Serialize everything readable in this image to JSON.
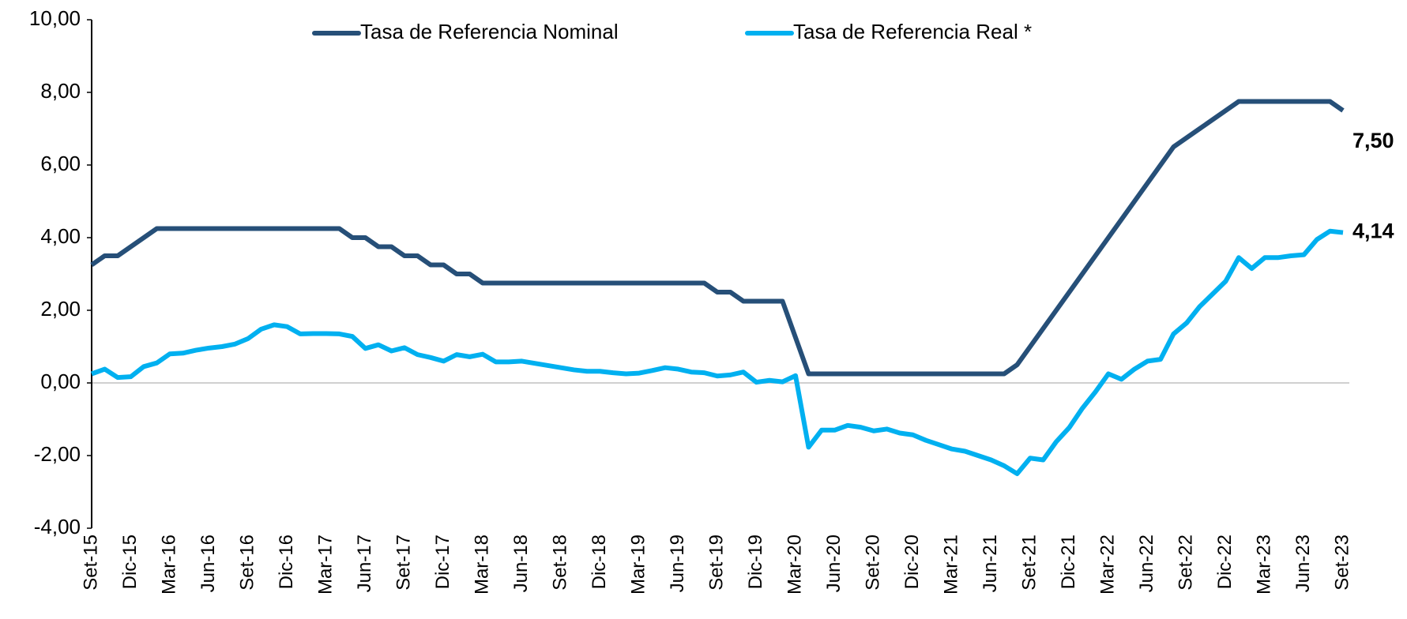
{
  "chart_data": {
    "type": "line",
    "categories": [
      "Set-15",
      null,
      null,
      "Dic-15",
      null,
      null,
      "Mar-16",
      null,
      null,
      "Jun-16",
      null,
      null,
      "Set-16",
      null,
      null,
      "Dic-16",
      null,
      null,
      "Mar-17",
      null,
      null,
      "Jun-17",
      null,
      null,
      "Set-17",
      null,
      null,
      "Dic-17",
      null,
      null,
      "Mar-18",
      null,
      null,
      "Jun-18",
      null,
      null,
      "Set-18",
      null,
      null,
      "Dic-18",
      null,
      null,
      "Mar-19",
      null,
      null,
      "Jun-19",
      null,
      null,
      "Set-19",
      null,
      null,
      "Dic-19",
      null,
      null,
      "Mar-20",
      null,
      null,
      "Jun-20",
      null,
      null,
      "Set-20",
      null,
      null,
      "Dic-20",
      null,
      null,
      "Mar-21",
      null,
      null,
      "Jun-21",
      null,
      null,
      "Set-21",
      null,
      null,
      "Dic-21",
      null,
      null,
      "Mar-22",
      null,
      null,
      "Jun-22",
      null,
      null,
      "Set-22",
      null,
      null,
      "Dic-22",
      null,
      null,
      "Mar-23",
      null,
      null,
      "Jun-23",
      null,
      null,
      "Set-23"
    ],
    "series": [
      {
        "name": "Tasa de Referencia Nominal",
        "color": "#264f78",
        "values": [
          3.25,
          3.5,
          3.5,
          3.75,
          4.0,
          4.25,
          4.25,
          4.25,
          4.25,
          4.25,
          4.25,
          4.25,
          4.25,
          4.25,
          4.25,
          4.25,
          4.25,
          4.25,
          4.25,
          4.25,
          4.0,
          4.0,
          3.75,
          3.75,
          3.5,
          3.5,
          3.25,
          3.25,
          3.0,
          3.0,
          2.75,
          2.75,
          2.75,
          2.75,
          2.75,
          2.75,
          2.75,
          2.75,
          2.75,
          2.75,
          2.75,
          2.75,
          2.75,
          2.75,
          2.75,
          2.75,
          2.75,
          2.75,
          2.5,
          2.5,
          2.25,
          2.25,
          2.25,
          2.25,
          1.25,
          0.25,
          0.25,
          0.25,
          0.25,
          0.25,
          0.25,
          0.25,
          0.25,
          0.25,
          0.25,
          0.25,
          0.25,
          0.25,
          0.25,
          0.25,
          0.25,
          0.5,
          1.0,
          1.5,
          2.0,
          2.5,
          3.0,
          3.5,
          4.0,
          4.5,
          5.0,
          5.5,
          6.0,
          6.5,
          6.75,
          7.0,
          7.25,
          7.5,
          7.75,
          7.75,
          7.75,
          7.75,
          7.75,
          7.75,
          7.75,
          7.75,
          7.5
        ],
        "value_labels": [
          null,
          null,
          null,
          null,
          null,
          null,
          null,
          null,
          null,
          null,
          null,
          null,
          null,
          null,
          null,
          null,
          null,
          null,
          null,
          null,
          null,
          null,
          null,
          null,
          null,
          null,
          null,
          null,
          null,
          null,
          null,
          null,
          null,
          null,
          null,
          null,
          null,
          null,
          null,
          null,
          null,
          null,
          null,
          null,
          null,
          null,
          null,
          null,
          null,
          null,
          null,
          null,
          null,
          null,
          null,
          null,
          null,
          null,
          null,
          null,
          null,
          null,
          null,
          null,
          null,
          null,
          null,
          null,
          null,
          null,
          null,
          null,
          null,
          null,
          null,
          null,
          null,
          null,
          null,
          null,
          null,
          null,
          null,
          null,
          null,
          null,
          null,
          null,
          null,
          null,
          null,
          null,
          null,
          null,
          null,
          null,
          "7,50"
        ]
      },
      {
        "name": "Tasa de Referencia Real *",
        "color": "#00b0f0",
        "values": [
          0.25,
          0.38,
          0.15,
          0.17,
          0.45,
          0.55,
          0.8,
          0.82,
          0.9,
          0.96,
          1.0,
          1.07,
          1.22,
          1.48,
          1.6,
          1.55,
          1.35,
          1.36,
          1.36,
          1.35,
          1.28,
          0.95,
          1.05,
          0.88,
          0.97,
          0.78,
          0.7,
          0.6,
          0.78,
          0.72,
          0.79,
          0.58,
          0.58,
          0.6,
          0.54,
          0.48,
          0.42,
          0.36,
          0.32,
          0.32,
          0.28,
          0.25,
          0.27,
          0.34,
          0.42,
          0.38,
          0.3,
          0.28,
          0.19,
          0.22,
          0.3,
          0.02,
          0.07,
          0.03,
          0.2,
          -1.77,
          -1.3,
          -1.3,
          -1.17,
          -1.22,
          -1.32,
          -1.27,
          -1.38,
          -1.43,
          -1.58,
          -1.7,
          -1.82,
          -1.88,
          -2.0,
          -2.12,
          -2.28,
          -2.5,
          -2.07,
          -2.12,
          -1.62,
          -1.23,
          -0.7,
          -0.25,
          0.25,
          0.1,
          0.38,
          0.6,
          0.65,
          1.35,
          1.65,
          2.1,
          2.45,
          2.8,
          3.45,
          3.15,
          3.45,
          3.45,
          3.5,
          3.53,
          3.95,
          4.18,
          4.14
        ],
        "value_labels": [
          null,
          null,
          null,
          null,
          null,
          null,
          null,
          null,
          null,
          null,
          null,
          null,
          null,
          null,
          null,
          null,
          null,
          null,
          null,
          null,
          null,
          null,
          null,
          null,
          null,
          null,
          null,
          null,
          null,
          null,
          null,
          null,
          null,
          null,
          null,
          null,
          null,
          null,
          null,
          null,
          null,
          null,
          null,
          null,
          null,
          null,
          null,
          null,
          null,
          null,
          null,
          null,
          null,
          null,
          null,
          null,
          null,
          null,
          null,
          null,
          null,
          null,
          null,
          null,
          null,
          null,
          null,
          null,
          null,
          null,
          null,
          null,
          null,
          null,
          null,
          null,
          null,
          null,
          null,
          null,
          null,
          null,
          null,
          null,
          null,
          null,
          null,
          null,
          null,
          null,
          null,
          null,
          null,
          null,
          null,
          null,
          "4,14"
        ]
      }
    ],
    "ylim": [
      -4,
      10
    ],
    "yticks": [
      {
        "value": -4,
        "label": "-4,00"
      },
      {
        "value": -2,
        "label": "-2,00"
      },
      {
        "value": 0,
        "label": "0,00"
      },
      {
        "value": 2,
        "label": "2,00"
      },
      {
        "value": 4,
        "label": "4,00"
      },
      {
        "value": 6,
        "label": "6,00"
      },
      {
        "value": 8,
        "label": "8,00"
      },
      {
        "value": 10,
        "label": "10,00"
      }
    ],
    "grid": false,
    "legend": "top"
  }
}
